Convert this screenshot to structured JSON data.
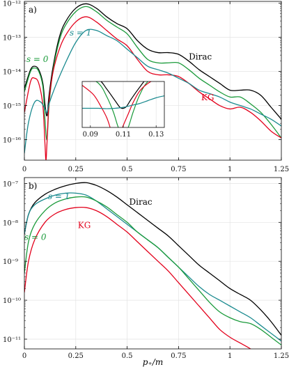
{
  "colors": {
    "dirac": "#000000",
    "kg": "#e3001b",
    "s0": "#1a9a3a",
    "s1": "#1a8a8f"
  },
  "chart_data": [
    {
      "type": "line",
      "scale": "log",
      "panel_label": "a)",
      "xlim": [
        0,
        1.25
      ],
      "ylim_log10": [
        -16.6,
        -11.95
      ],
      "x_ticks": [
        0,
        0.25,
        0.5,
        0.75,
        1,
        1.25
      ],
      "x_tick_labels": [
        "0",
        "0.25",
        "0.5",
        "0.75",
        "1",
        "1.25"
      ],
      "y_ticks_log10": [
        -16,
        -15,
        -14,
        -13,
        -12
      ],
      "y_tick_labels": [
        "10⁻¹⁶",
        "10⁻¹⁵",
        "10⁻¹⁴",
        "10⁻¹³",
        "10⁻¹²"
      ],
      "annotations": [
        {
          "text": "Dirac",
          "series": "dirac",
          "x": 0.8,
          "log10": -13.65
        },
        {
          "text": "KG",
          "series": "kg",
          "x": 0.86,
          "log10": -14.85
        },
        {
          "text": "s = 0",
          "series": "s0",
          "x": 0.01,
          "log10": -13.72
        },
        {
          "text": "s = 1",
          "series": "s1",
          "x": 0.22,
          "log10": -12.95
        }
      ],
      "series": [
        {
          "name": "Dirac",
          "key": "dirac",
          "x": [
            0,
            0.03,
            0.05,
            0.07,
            0.09,
            0.1,
            0.11,
            0.12,
            0.14,
            0.17,
            0.2,
            0.25,
            0.3,
            0.35,
            0.4,
            0.45,
            0.5,
            0.55,
            0.6,
            0.65,
            0.7,
            0.75,
            0.8,
            0.85,
            0.9,
            0.95,
            1.0,
            1.05,
            1.1,
            1.15,
            1.2,
            1.25
          ],
          "log10": [
            -14.5,
            -13.95,
            -13.85,
            -13.95,
            -14.35,
            -14.95,
            -15.3,
            -14.7,
            -13.85,
            -13.0,
            -12.55,
            -12.15,
            -12.02,
            -12.15,
            -12.4,
            -12.6,
            -12.75,
            -13.1,
            -13.35,
            -13.45,
            -13.45,
            -13.5,
            -13.7,
            -13.95,
            -14.15,
            -14.35,
            -14.55,
            -14.55,
            -14.55,
            -14.7,
            -15.05,
            -15.4
          ]
        },
        {
          "name": "s = 0",
          "key": "s0",
          "x": [
            0,
            0.03,
            0.05,
            0.07,
            0.09,
            0.1,
            0.11,
            0.12,
            0.14,
            0.17,
            0.2,
            0.25,
            0.3,
            0.35,
            0.4,
            0.45,
            0.5,
            0.55,
            0.6,
            0.65,
            0.7,
            0.75,
            0.8,
            0.85,
            0.9,
            0.95,
            1.0,
            1.05,
            1.1,
            1.15,
            1.2,
            1.25
          ],
          "log10": [
            -14.6,
            -14.0,
            -13.9,
            -14.0,
            -14.45,
            -15.4,
            -16.0,
            -15.0,
            -13.95,
            -13.1,
            -12.65,
            -12.25,
            -12.1,
            -12.25,
            -12.5,
            -12.7,
            -12.9,
            -13.3,
            -13.65,
            -13.75,
            -13.75,
            -13.75,
            -13.95,
            -14.2,
            -14.4,
            -14.6,
            -14.75,
            -14.75,
            -14.95,
            -15.2,
            -15.55,
            -15.95
          ]
        },
        {
          "name": "KG",
          "key": "kg",
          "x": [
            0,
            0.03,
            0.05,
            0.07,
            0.09,
            0.1,
            0.105,
            0.11,
            0.12,
            0.14,
            0.17,
            0.2,
            0.25,
            0.3,
            0.35,
            0.4,
            0.45,
            0.5,
            0.55,
            0.6,
            0.65,
            0.7,
            0.75,
            0.8,
            0.85,
            0.9,
            0.95,
            1.0,
            1.05,
            1.1,
            1.15,
            1.2,
            1.25
          ],
          "log10": [
            -15.2,
            -14.3,
            -14.2,
            -14.35,
            -15.0,
            -16.1,
            -16.6,
            -16.1,
            -14.9,
            -14.0,
            -13.35,
            -12.95,
            -12.55,
            -12.4,
            -12.55,
            -12.8,
            -13.05,
            -13.25,
            -13.65,
            -14.0,
            -14.1,
            -14.1,
            -14.15,
            -14.35,
            -14.6,
            -14.8,
            -15.0,
            -15.1,
            -15.05,
            -15.2,
            -15.45,
            -15.75,
            -15.95
          ]
        },
        {
          "name": "s = 1",
          "key": "s1",
          "x": [
            0,
            0.02,
            0.05,
            0.08,
            0.1,
            0.11,
            0.12,
            0.15,
            0.2,
            0.25,
            0.3,
            0.35,
            0.4,
            0.45,
            0.5,
            0.55,
            0.6,
            0.65,
            0.7,
            0.75,
            0.8,
            0.85,
            0.9,
            0.95,
            1.0,
            1.05,
            1.1,
            1.15,
            1.2,
            1.25
          ],
          "log10": [
            -16.4,
            -15.5,
            -14.9,
            -14.9,
            -15.1,
            -15.2,
            -14.95,
            -14.45,
            -13.75,
            -13.15,
            -12.8,
            -12.8,
            -12.95,
            -13.1,
            -13.35,
            -13.6,
            -13.85,
            -13.95,
            -14.05,
            -14.2,
            -14.35,
            -14.55,
            -14.65,
            -14.75,
            -14.9,
            -15.0,
            -15.1,
            -15.25,
            -15.4,
            -15.6
          ]
        }
      ],
      "inset": {
        "xlim": [
          0.085,
          0.135
        ],
        "x_ticks": [
          0.09,
          0.11,
          0.13
        ],
        "x_tick_labels": [
          "0.09",
          "0.11",
          "0.13"
        ],
        "ylim_log10": [
          -16.6,
          -14.2
        ],
        "series": [
          {
            "key": "dirac",
            "x": [
              0.085,
              0.095,
              0.1,
              0.105,
              0.108,
              0.11,
              0.112,
              0.115,
              0.12,
              0.125,
              0.135
            ],
            "log10": [
              -13.8,
              -14.1,
              -14.6,
              -15.2,
              -15.55,
              -15.6,
              -15.5,
              -15.1,
              -14.5,
              -14.0,
              -13.5
            ]
          },
          {
            "key": "s0",
            "x": [
              0.085,
              0.095,
              0.1,
              0.104,
              0.107,
              0.11,
              0.113,
              0.116,
              0.12,
              0.125,
              0.135
            ],
            "log10": [
              -13.8,
              -14.3,
              -15.0,
              -15.8,
              -16.6,
              -17.0,
              -16.6,
              -15.8,
              -14.9,
              -14.2,
              -13.6
            ]
          },
          {
            "key": "kg",
            "x": [
              0.085,
              0.092,
              0.097,
              0.1,
              0.102,
              0.104,
              0.106,
              0.108,
              0.11,
              0.113,
              0.116,
              0.12,
              0.125,
              0.135
            ],
            "log10": [
              -14.4,
              -14.9,
              -15.6,
              -16.1,
              -16.6,
              -17.2,
              -17.6,
              -17.0,
              -16.5,
              -15.9,
              -15.3,
              -14.7,
              -14.3,
              -13.8
            ]
          },
          {
            "key": "s1",
            "x": [
              0.085,
              0.09,
              0.095,
              0.1,
              0.105,
              0.11,
              0.115,
              0.12,
              0.125,
              0.13,
              0.135
            ],
            "log10": [
              -15.6,
              -15.6,
              -15.6,
              -15.62,
              -15.6,
              -15.55,
              -15.45,
              -15.35,
              -15.2,
              -15.05,
              -14.95
            ]
          }
        ]
      }
    },
    {
      "type": "line",
      "scale": "log",
      "panel_label": "b)",
      "xlim": [
        0,
        1.25
      ],
      "ylim_log10": [
        -11.25,
        -6.85
      ],
      "x_ticks": [
        0,
        0.25,
        0.5,
        0.75,
        1,
        1.25
      ],
      "x_tick_labels": [
        "0",
        "0.25",
        "0.5",
        "0.75",
        "1",
        "1.25"
      ],
      "y_ticks_log10": [
        -11,
        -10,
        -9,
        -8,
        -7
      ],
      "y_tick_labels": [
        "10⁻¹¹",
        "10⁻¹⁰",
        "10⁻⁹",
        "10⁻⁸",
        "10⁻⁷"
      ],
      "xlabel": "p₊/m",
      "annotations": [
        {
          "text": "Dirac",
          "series": "dirac",
          "x": 0.51,
          "log10": -7.55
        },
        {
          "text": "KG",
          "series": "kg",
          "x": 0.26,
          "log10": -8.15
        },
        {
          "text": "s = 1",
          "series": "s1",
          "x": 0.115,
          "log10": -7.4
        },
        {
          "text": "s = 0",
          "series": "s0",
          "x": 0.0,
          "log10": -8.45
        }
      ],
      "series": [
        {
          "name": "Dirac",
          "key": "dirac",
          "x": [
            0,
            0.02,
            0.05,
            0.1,
            0.15,
            0.2,
            0.25,
            0.3,
            0.35,
            0.4,
            0.45,
            0.5,
            0.55,
            0.6,
            0.65,
            0.7,
            0.75,
            0.8,
            0.85,
            0.9,
            0.95,
            1.0,
            1.05,
            1.1,
            1.15,
            1.2,
            1.25
          ],
          "log10": [
            -8.3,
            -7.8,
            -7.5,
            -7.28,
            -7.15,
            -7.06,
            -7.0,
            -6.98,
            -7.05,
            -7.18,
            -7.35,
            -7.55,
            -7.75,
            -7.95,
            -8.15,
            -8.35,
            -8.6,
            -8.85,
            -9.1,
            -9.3,
            -9.5,
            -9.7,
            -9.85,
            -10.0,
            -10.25,
            -10.55,
            -10.9
          ]
        },
        {
          "name": "s = 1",
          "key": "s1",
          "x": [
            0,
            0.02,
            0.05,
            0.1,
            0.15,
            0.2,
            0.25,
            0.3,
            0.35,
            0.4,
            0.45,
            0.5,
            0.55,
            0.6,
            0.65,
            0.7,
            0.75,
            0.8,
            0.85,
            0.9,
            0.95,
            1.0,
            1.05,
            1.1,
            1.15,
            1.2,
            1.25
          ],
          "log10": [
            -8.3,
            -7.8,
            -7.55,
            -7.4,
            -7.3,
            -7.25,
            -7.25,
            -7.3,
            -7.45,
            -7.65,
            -7.85,
            -8.05,
            -8.25,
            -8.45,
            -8.65,
            -8.9,
            -9.15,
            -9.4,
            -9.65,
            -9.85,
            -10.0,
            -10.15,
            -10.3,
            -10.45,
            -10.65,
            -10.85,
            -11.05
          ]
        },
        {
          "name": "s = 0",
          "key": "s0",
          "x": [
            0,
            0.02,
            0.05,
            0.1,
            0.15,
            0.2,
            0.25,
            0.3,
            0.35,
            0.4,
            0.45,
            0.5,
            0.55,
            0.6,
            0.65,
            0.7,
            0.75,
            0.8,
            0.85,
            0.9,
            0.95,
            1.0,
            1.05,
            1.1,
            1.15,
            1.2,
            1.25
          ],
          "log10": [
            -9.3,
            -8.5,
            -8.05,
            -7.7,
            -7.5,
            -7.4,
            -7.35,
            -7.35,
            -7.45,
            -7.6,
            -7.8,
            -8.0,
            -8.25,
            -8.45,
            -8.65,
            -8.9,
            -9.15,
            -9.45,
            -9.75,
            -10.05,
            -10.3,
            -10.45,
            -10.55,
            -10.6,
            -10.75,
            -10.95,
            -11.15
          ]
        },
        {
          "name": "KG",
          "key": "kg",
          "x": [
            0,
            0.02,
            0.05,
            0.1,
            0.15,
            0.2,
            0.25,
            0.3,
            0.35,
            0.4,
            0.45,
            0.5,
            0.55,
            0.6,
            0.65,
            0.7,
            0.75,
            0.8,
            0.85,
            0.9,
            0.95,
            1.0,
            1.05,
            1.1,
            1.15,
            1.2,
            1.25
          ],
          "log10": [
            -9.8,
            -9.0,
            -8.45,
            -8.0,
            -7.78,
            -7.67,
            -7.62,
            -7.62,
            -7.7,
            -7.85,
            -8.05,
            -8.25,
            -8.5,
            -8.75,
            -9.0,
            -9.25,
            -9.55,
            -9.85,
            -10.15,
            -10.45,
            -10.75,
            -10.95,
            -11.1,
            -11.25,
            -11.45,
            -11.65,
            -11.85
          ]
        }
      ]
    }
  ]
}
